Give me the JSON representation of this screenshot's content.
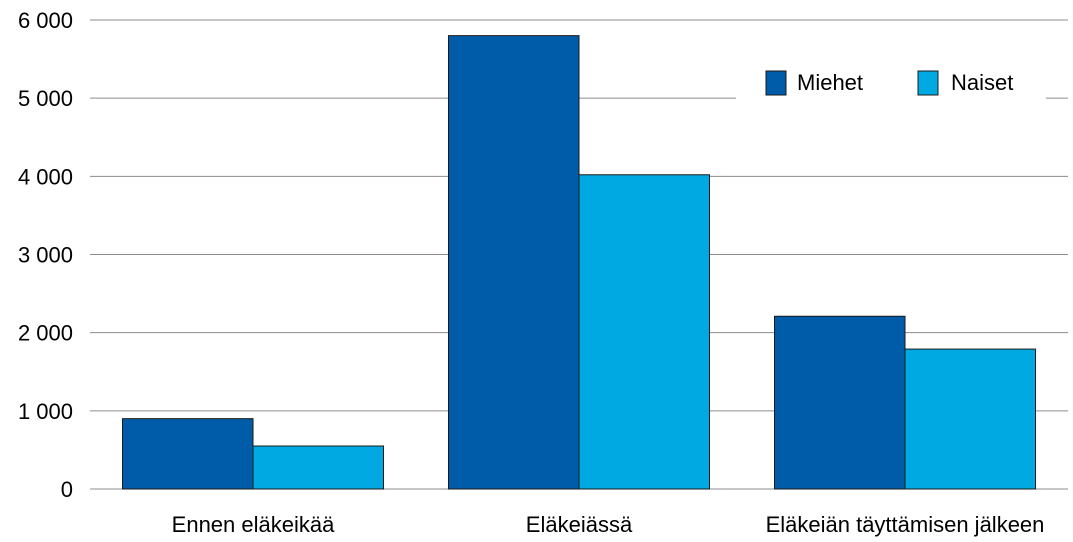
{
  "chart_data": {
    "type": "bar",
    "title": "",
    "xlabel": "",
    "ylabel": "",
    "categories": [
      "Ennen eläkeikää",
      "Eläkeiässä",
      "Eläkeiän täyttämisen jälkeen"
    ],
    "series": [
      {
        "name": "Miehet",
        "values": [
          900,
          5800,
          2210
        ],
        "color": "#005ca8"
      },
      {
        "name": "Naiset",
        "values": [
          550,
          4020,
          1790
        ],
        "color": "#00a9e2"
      }
    ],
    "ylim": [
      0,
      6000
    ],
    "yticks": [
      0,
      1000,
      2000,
      3000,
      4000,
      5000,
      6000
    ],
    "ytick_labels": [
      "0",
      "1 000",
      "2 000",
      "3 000",
      "4 000",
      "5 000",
      "6 000"
    ],
    "grid": true,
    "legend_position": "top-right",
    "gridline_color": "#8c8c8c",
    "bar_border_color": "#1a1a1a"
  }
}
